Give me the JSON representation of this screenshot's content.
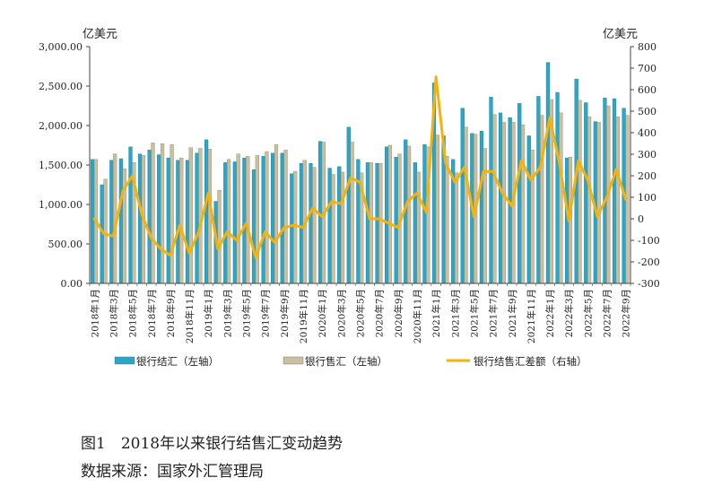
{
  "figure": {
    "title": "图1　2018年以来银行结售汇变动趋势",
    "source": "数据来源：国家外汇管理局"
  },
  "chart_data": {
    "type": "bar",
    "left_unit": "亿美元",
    "right_unit": "亿美元",
    "y_left_ticks": [
      "0.00",
      "500.00",
      "1,000.00",
      "1,500.00",
      "2,000.00",
      "2,500.00",
      "3,000.00"
    ],
    "y_right_ticks": [
      "-300",
      "-200",
      "-100",
      "0",
      "100",
      "200",
      "300",
      "400",
      "500",
      "600",
      "700",
      "800"
    ],
    "ylim_left": [
      0,
      3000
    ],
    "ylim_right": [
      -300,
      800
    ],
    "grid": false,
    "legend_position": "bottom",
    "x": [
      "2018年1月",
      "2018年2月",
      "2018年3月",
      "2018年4月",
      "2018年5月",
      "2018年6月",
      "2018年7月",
      "2018年8月",
      "2018年9月",
      "2018年10月",
      "2018年11月",
      "2018年12月",
      "2019年1月",
      "2019年2月",
      "2019年3月",
      "2019年4月",
      "2019年5月",
      "2019年6月",
      "2019年7月",
      "2019年8月",
      "2019年9月",
      "2019年10月",
      "2019年11月",
      "2019年12月",
      "2020年1月",
      "2020年2月",
      "2020年3月",
      "2020年4月",
      "2020年5月",
      "2020年6月",
      "2020年7月",
      "2020年8月",
      "2020年9月",
      "2020年10月",
      "2020年11月",
      "2020年12月",
      "2021年1月",
      "2021年2月",
      "2021年3月",
      "2021年4月",
      "2021年5月",
      "2021年6月",
      "2021年7月",
      "2021年8月",
      "2021年9月",
      "2021年10月",
      "2021年11月",
      "2021年12月",
      "2022年1月",
      "2022年2月",
      "2022年3月",
      "2022年4月",
      "2022年5月",
      "2022年6月",
      "2022年7月",
      "2022年8月",
      "2022年9月"
    ],
    "x_tick_labels": [
      "2018年1月",
      "2018年3月",
      "2018年5月",
      "2018年7月",
      "2018年9月",
      "2018年11月",
      "2019年1月",
      "2019年3月",
      "2019年5月",
      "2019年7月",
      "2019年9月",
      "2019年11月",
      "2020年1月",
      "2020年3月",
      "2020年5月",
      "2020年7月",
      "2020年9月",
      "2020年11月",
      "2021年1月",
      "2021年3月",
      "2021年5月",
      "2021年7月",
      "2021年9月",
      "2021年11月",
      "2022年1月",
      "2022年3月",
      "2022年5月",
      "2022年7月",
      "2022年9月"
    ],
    "series": [
      {
        "name": "银行结汇（左轴）",
        "axis": "left",
        "kind": "bar",
        "color": "#2aa6c8",
        "values": [
          1570,
          1250,
          1560,
          1580,
          1730,
          1640,
          1690,
          1630,
          1590,
          1560,
          1560,
          1650,
          1820,
          1040,
          1530,
          1540,
          1590,
          1440,
          1610,
          1650,
          1650,
          1390,
          1520,
          1520,
          1800,
          1460,
          1480,
          1980,
          1570,
          1530,
          1520,
          1730,
          1600,
          1820,
          1530,
          1760,
          2540,
          1870,
          1570,
          2220,
          1900,
          1930,
          2360,
          2160,
          2100,
          2280,
          1870,
          2370,
          2800,
          2420,
          1590,
          2590,
          2290,
          2050,
          2350,
          2340,
          2220
        ]
      },
      {
        "name": "银行售汇（左轴）",
        "axis": "left",
        "kind": "bar",
        "color": "#c8c0a0",
        "values": [
          1570,
          1320,
          1640,
          1450,
          1530,
          1620,
          1780,
          1770,
          1760,
          1590,
          1720,
          1710,
          1700,
          1180,
          1570,
          1640,
          1610,
          1620,
          1670,
          1760,
          1690,
          1420,
          1560,
          1470,
          1790,
          1380,
          1410,
          1790,
          1400,
          1530,
          1520,
          1750,
          1640,
          1740,
          1410,
          1730,
          1880,
          1610,
          1400,
          1980,
          1890,
          1710,
          2140,
          2040,
          2040,
          2010,
          1690,
          2130,
          2330,
          2160,
          1600,
          2320,
          2110,
          2040,
          2250,
          2110,
          2130
        ]
      },
      {
        "name": "银行结售汇差额（右轴）",
        "axis": "right",
        "kind": "line",
        "color": "#f5b20a",
        "values": [
          0,
          -70,
          -80,
          130,
          200,
          20,
          -90,
          -140,
          -170,
          -30,
          -160,
          -60,
          120,
          -140,
          -60,
          -100,
          -20,
          -180,
          -60,
          -110,
          -40,
          -30,
          -40,
          50,
          10,
          80,
          70,
          190,
          170,
          0,
          0,
          -20,
          -40,
          80,
          120,
          30,
          660,
          260,
          170,
          240,
          10,
          220,
          220,
          120,
          60,
          270,
          180,
          240,
          470,
          260,
          -10,
          270,
          180,
          10,
          100,
          230,
          90
        ]
      }
    ]
  }
}
